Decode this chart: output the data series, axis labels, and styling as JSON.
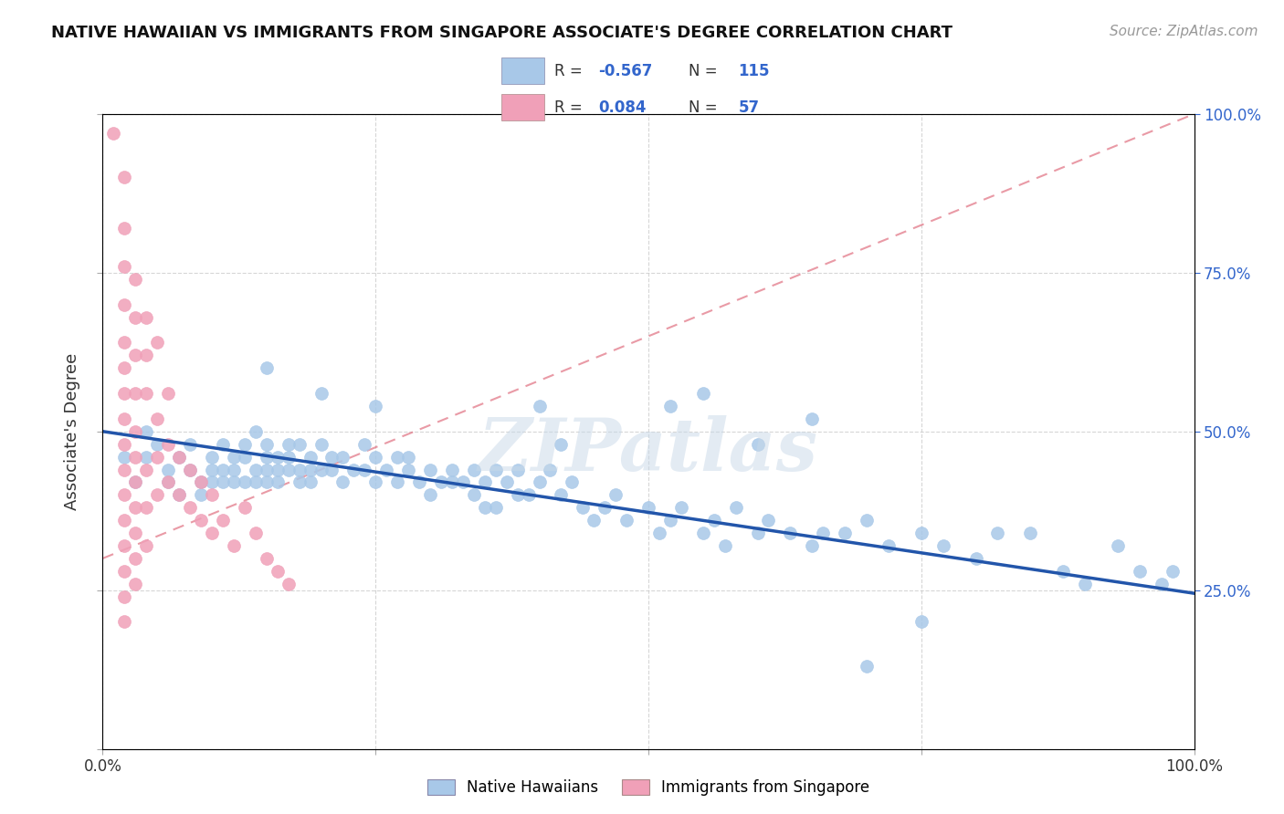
{
  "title": "NATIVE HAWAIIAN VS IMMIGRANTS FROM SINGAPORE ASSOCIATE'S DEGREE CORRELATION CHART",
  "source_text": "Source: ZipAtlas.com",
  "ylabel": "Associate's Degree",
  "blue_color": "#A8C8E8",
  "pink_color": "#F0A0B8",
  "blue_line_color": "#2255AA",
  "pink_line_color": "#E07080",
  "r_value_color": "#3366CC",
  "legend_box_color": "#DDDDDD",
  "blue_scatter": [
    [
      0.02,
      0.46
    ],
    [
      0.03,
      0.42
    ],
    [
      0.04,
      0.5
    ],
    [
      0.04,
      0.46
    ],
    [
      0.05,
      0.48
    ],
    [
      0.06,
      0.42
    ],
    [
      0.06,
      0.44
    ],
    [
      0.07,
      0.46
    ],
    [
      0.07,
      0.4
    ],
    [
      0.08,
      0.48
    ],
    [
      0.08,
      0.44
    ],
    [
      0.09,
      0.42
    ],
    [
      0.09,
      0.4
    ],
    [
      0.1,
      0.46
    ],
    [
      0.1,
      0.44
    ],
    [
      0.1,
      0.42
    ],
    [
      0.11,
      0.48
    ],
    [
      0.11,
      0.44
    ],
    [
      0.11,
      0.42
    ],
    [
      0.12,
      0.46
    ],
    [
      0.12,
      0.44
    ],
    [
      0.12,
      0.42
    ],
    [
      0.13,
      0.48
    ],
    [
      0.13,
      0.46
    ],
    [
      0.13,
      0.42
    ],
    [
      0.14,
      0.5
    ],
    [
      0.14,
      0.44
    ],
    [
      0.14,
      0.42
    ],
    [
      0.15,
      0.48
    ],
    [
      0.15,
      0.46
    ],
    [
      0.15,
      0.44
    ],
    [
      0.15,
      0.42
    ],
    [
      0.16,
      0.46
    ],
    [
      0.16,
      0.44
    ],
    [
      0.16,
      0.42
    ],
    [
      0.17,
      0.48
    ],
    [
      0.17,
      0.46
    ],
    [
      0.17,
      0.44
    ],
    [
      0.18,
      0.48
    ],
    [
      0.18,
      0.44
    ],
    [
      0.18,
      0.42
    ],
    [
      0.19,
      0.46
    ],
    [
      0.19,
      0.44
    ],
    [
      0.19,
      0.42
    ],
    [
      0.2,
      0.48
    ],
    [
      0.2,
      0.44
    ],
    [
      0.21,
      0.46
    ],
    [
      0.21,
      0.44
    ],
    [
      0.22,
      0.46
    ],
    [
      0.22,
      0.42
    ],
    [
      0.23,
      0.44
    ],
    [
      0.24,
      0.48
    ],
    [
      0.24,
      0.44
    ],
    [
      0.25,
      0.46
    ],
    [
      0.25,
      0.42
    ],
    [
      0.26,
      0.44
    ],
    [
      0.27,
      0.46
    ],
    [
      0.27,
      0.42
    ],
    [
      0.28,
      0.44
    ],
    [
      0.29,
      0.42
    ],
    [
      0.3,
      0.44
    ],
    [
      0.3,
      0.4
    ],
    [
      0.31,
      0.42
    ],
    [
      0.32,
      0.44
    ],
    [
      0.33,
      0.42
    ],
    [
      0.34,
      0.44
    ],
    [
      0.34,
      0.4
    ],
    [
      0.35,
      0.42
    ],
    [
      0.36,
      0.44
    ],
    [
      0.36,
      0.38
    ],
    [
      0.37,
      0.42
    ],
    [
      0.38,
      0.44
    ],
    [
      0.39,
      0.4
    ],
    [
      0.4,
      0.42
    ],
    [
      0.41,
      0.44
    ],
    [
      0.42,
      0.4
    ],
    [
      0.43,
      0.42
    ],
    [
      0.44,
      0.38
    ],
    [
      0.45,
      0.36
    ],
    [
      0.46,
      0.38
    ],
    [
      0.47,
      0.4
    ],
    [
      0.48,
      0.36
    ],
    [
      0.5,
      0.38
    ],
    [
      0.51,
      0.34
    ],
    [
      0.52,
      0.36
    ],
    [
      0.53,
      0.38
    ],
    [
      0.55,
      0.34
    ],
    [
      0.56,
      0.36
    ],
    [
      0.57,
      0.32
    ],
    [
      0.58,
      0.38
    ],
    [
      0.6,
      0.34
    ],
    [
      0.61,
      0.36
    ],
    [
      0.63,
      0.34
    ],
    [
      0.65,
      0.32
    ],
    [
      0.66,
      0.34
    ],
    [
      0.68,
      0.34
    ],
    [
      0.7,
      0.36
    ],
    [
      0.72,
      0.32
    ],
    [
      0.75,
      0.34
    ],
    [
      0.77,
      0.32
    ],
    [
      0.8,
      0.3
    ],
    [
      0.82,
      0.34
    ],
    [
      0.85,
      0.34
    ],
    [
      0.88,
      0.28
    ],
    [
      0.9,
      0.26
    ],
    [
      0.93,
      0.32
    ],
    [
      0.95,
      0.28
    ],
    [
      0.97,
      0.26
    ],
    [
      0.52,
      0.54
    ],
    [
      0.55,
      0.56
    ],
    [
      0.6,
      0.48
    ],
    [
      0.65,
      0.52
    ],
    [
      0.4,
      0.54
    ],
    [
      0.42,
      0.48
    ],
    [
      0.15,
      0.6
    ],
    [
      0.2,
      0.56
    ],
    [
      0.25,
      0.54
    ],
    [
      0.98,
      0.28
    ],
    [
      0.7,
      0.13
    ],
    [
      0.75,
      0.2
    ],
    [
      0.35,
      0.38
    ],
    [
      0.38,
      0.4
    ],
    [
      0.28,
      0.46
    ],
    [
      0.32,
      0.42
    ]
  ],
  "pink_scatter": [
    [
      0.01,
      0.97
    ],
    [
      0.02,
      0.9
    ],
    [
      0.02,
      0.82
    ],
    [
      0.02,
      0.76
    ],
    [
      0.02,
      0.7
    ],
    [
      0.02,
      0.64
    ],
    [
      0.02,
      0.6
    ],
    [
      0.02,
      0.56
    ],
    [
      0.02,
      0.52
    ],
    [
      0.02,
      0.48
    ],
    [
      0.02,
      0.44
    ],
    [
      0.02,
      0.4
    ],
    [
      0.02,
      0.36
    ],
    [
      0.02,
      0.32
    ],
    [
      0.02,
      0.28
    ],
    [
      0.02,
      0.24
    ],
    [
      0.02,
      0.2
    ],
    [
      0.03,
      0.74
    ],
    [
      0.03,
      0.68
    ],
    [
      0.03,
      0.62
    ],
    [
      0.03,
      0.56
    ],
    [
      0.03,
      0.5
    ],
    [
      0.03,
      0.46
    ],
    [
      0.03,
      0.42
    ],
    [
      0.03,
      0.38
    ],
    [
      0.03,
      0.34
    ],
    [
      0.03,
      0.3
    ],
    [
      0.03,
      0.26
    ],
    [
      0.04,
      0.68
    ],
    [
      0.04,
      0.62
    ],
    [
      0.04,
      0.56
    ],
    [
      0.04,
      0.44
    ],
    [
      0.04,
      0.38
    ],
    [
      0.04,
      0.32
    ],
    [
      0.05,
      0.64
    ],
    [
      0.05,
      0.52
    ],
    [
      0.05,
      0.46
    ],
    [
      0.05,
      0.4
    ],
    [
      0.06,
      0.56
    ],
    [
      0.06,
      0.48
    ],
    [
      0.06,
      0.42
    ],
    [
      0.07,
      0.46
    ],
    [
      0.07,
      0.4
    ],
    [
      0.08,
      0.44
    ],
    [
      0.08,
      0.38
    ],
    [
      0.09,
      0.42
    ],
    [
      0.09,
      0.36
    ],
    [
      0.1,
      0.4
    ],
    [
      0.1,
      0.34
    ],
    [
      0.11,
      0.36
    ],
    [
      0.12,
      0.32
    ],
    [
      0.13,
      0.38
    ],
    [
      0.14,
      0.34
    ],
    [
      0.15,
      0.3
    ],
    [
      0.16,
      0.28
    ],
    [
      0.17,
      0.26
    ]
  ],
  "blue_trend_x": [
    0.0,
    1.0
  ],
  "blue_trend_y": [
    0.5,
    0.245
  ],
  "pink_trend_x": [
    0.0,
    1.0
  ],
  "pink_trend_y": [
    0.3,
    1.0
  ],
  "watermark": "ZIPatlas",
  "background_color": "#FFFFFF",
  "grid_color": "#CCCCCC",
  "xlim": [
    0.0,
    1.0
  ],
  "ylim": [
    0.0,
    1.0
  ]
}
